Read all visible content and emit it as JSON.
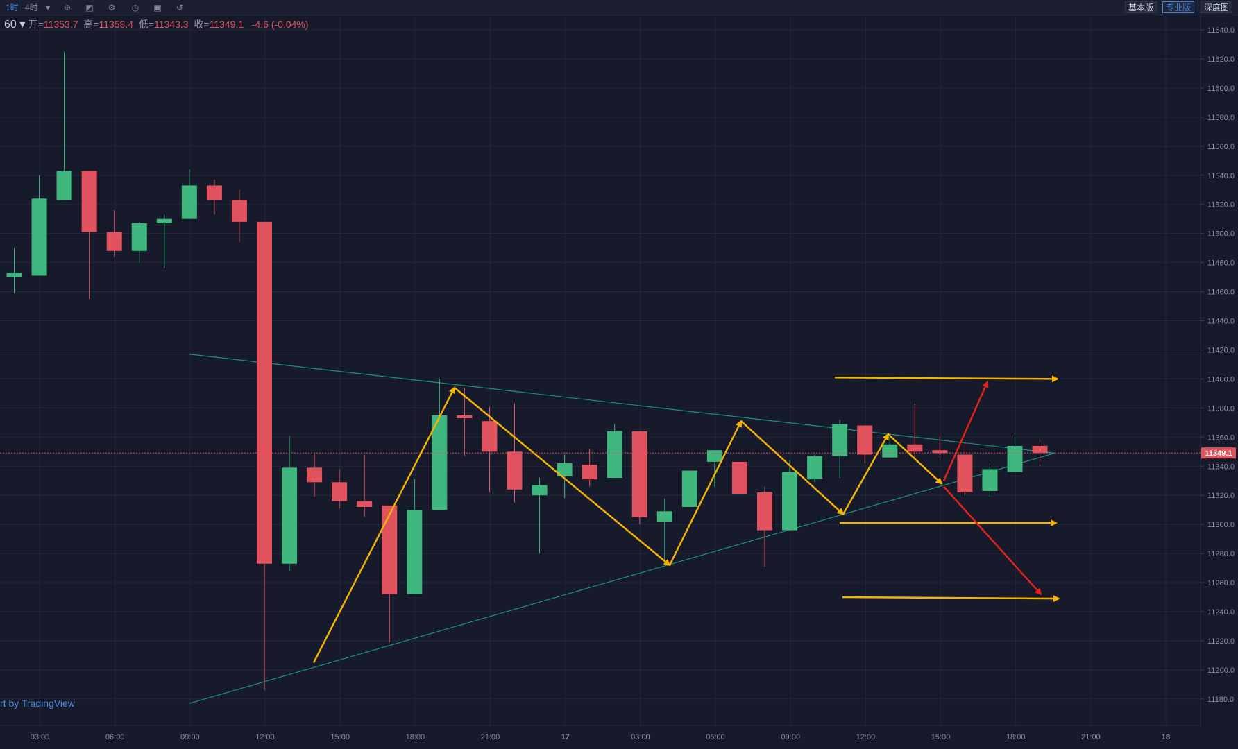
{
  "toolbar": {
    "interval_1h": "1时",
    "interval_4h": "4时",
    "btn_basic": "基本版",
    "btn_pro": "专业版",
    "btn_depth": "深度图"
  },
  "legend": {
    "resolution": "60",
    "open_label": "开=",
    "open": "11353.7",
    "high_label": "高=",
    "high": "11358.4",
    "low_label": "低=",
    "low": "11343.3",
    "close_label": "收=",
    "close": "11349.1",
    "change": "-4.6 (-0.04%)"
  },
  "watermark": "rt by TradingView",
  "colors": {
    "up": "#3fb77e",
    "down": "#e0525e",
    "grid": "#23283b",
    "trend": "#1f8f7e",
    "arrow": "#f5b400",
    "arrow_red": "#e2231a",
    "price_label": "#e0525e"
  },
  "chart_data": {
    "type": "candlestick",
    "current_price": "11349.1",
    "y_ticks": [
      "11640.0",
      "11620.0",
      "11600.0",
      "11580.0",
      "11560.0",
      "11540.0",
      "11520.0",
      "11500.0",
      "11480.0",
      "11460.0",
      "11440.0",
      "11420.0",
      "11400.0",
      "11380.0",
      "11360.0",
      "11340.0",
      "11320.0",
      "11300.0",
      "11280.0",
      "11260.0",
      "11240.0",
      "11220.0",
      "11200.0",
      "11180.0"
    ],
    "x_ticks": [
      "03:00",
      "06:00",
      "09:00",
      "12:00",
      "15:00",
      "18:00",
      "21:00",
      "17",
      "03:00",
      "06:00",
      "09:00",
      "12:00",
      "15:00",
      "18:00",
      "21:00",
      "18"
    ],
    "candles": [
      {
        "o": 11470,
        "h": 11490,
        "l": 11459,
        "c": 11473
      },
      {
        "o": 11471,
        "h": 11540,
        "l": 11471,
        "c": 11524
      },
      {
        "o": 11523,
        "h": 11625,
        "l": 11523,
        "c": 11543
      },
      {
        "o": 11543,
        "h": 11543,
        "l": 11455,
        "c": 11501
      },
      {
        "o": 11501,
        "h": 11516,
        "l": 11484,
        "c": 11488
      },
      {
        "o": 11488,
        "h": 11508,
        "l": 11480,
        "c": 11507
      },
      {
        "o": 11507,
        "h": 11513,
        "l": 11476,
        "c": 11510
      },
      {
        "o": 11510,
        "h": 11544,
        "l": 11510,
        "c": 11533
      },
      {
        "o": 11533,
        "h": 11537,
        "l": 11513,
        "c": 11523
      },
      {
        "o": 11523,
        "h": 11530,
        "l": 11494,
        "c": 11508
      },
      {
        "o": 11508,
        "h": 11508,
        "l": 11186,
        "c": 11273
      },
      {
        "o": 11273,
        "h": 11361,
        "l": 11268,
        "c": 11339
      },
      {
        "o": 11339,
        "h": 11349,
        "l": 11319,
        "c": 11329
      },
      {
        "o": 11329,
        "h": 11338,
        "l": 11311,
        "c": 11316
      },
      {
        "o": 11316,
        "h": 11348,
        "l": 11305,
        "c": 11312
      },
      {
        "o": 11313,
        "h": 11313,
        "l": 11219,
        "c": 11252
      },
      {
        "o": 11252,
        "h": 11331,
        "l": 11252,
        "c": 11310
      },
      {
        "o": 11310,
        "h": 11400,
        "l": 11310,
        "c": 11375
      },
      {
        "o": 11375,
        "h": 11394,
        "l": 11347,
        "c": 11373
      },
      {
        "o": 11371,
        "h": 11381,
        "l": 11322,
        "c": 11350
      },
      {
        "o": 11350,
        "h": 11383,
        "l": 11315,
        "c": 11324
      },
      {
        "o": 11320,
        "h": 11332,
        "l": 11280,
        "c": 11327
      },
      {
        "o": 11333,
        "h": 11348,
        "l": 11318,
        "c": 11342
      },
      {
        "o": 11341,
        "h": 11352,
        "l": 11326,
        "c": 11331
      },
      {
        "o": 11332,
        "h": 11369,
        "l": 11332,
        "c": 11364
      },
      {
        "o": 11364,
        "h": 11364,
        "l": 11300,
        "c": 11305
      },
      {
        "o": 11302,
        "h": 11318,
        "l": 11273,
        "c": 11309
      },
      {
        "o": 11312,
        "h": 11337,
        "l": 11312,
        "c": 11337
      },
      {
        "o": 11343,
        "h": 11349,
        "l": 11326,
        "c": 11351
      },
      {
        "o": 11343,
        "h": 11343,
        "l": 11322,
        "c": 11321
      },
      {
        "o": 11322,
        "h": 11326,
        "l": 11271,
        "c": 11296
      },
      {
        "o": 11296,
        "h": 11344,
        "l": 11296,
        "c": 11336
      },
      {
        "o": 11331,
        "h": 11348,
        "l": 11329,
        "c": 11347
      },
      {
        "o": 11347,
        "h": 11372,
        "l": 11332,
        "c": 11369
      },
      {
        "o": 11368,
        "h": 11368,
        "l": 11342,
        "c": 11348
      },
      {
        "o": 11346,
        "h": 11360,
        "l": 11346,
        "c": 11355
      },
      {
        "o": 11355,
        "h": 11383,
        "l": 11346,
        "c": 11350
      },
      {
        "o": 11351,
        "h": 11360,
        "l": 11346,
        "c": 11349
      },
      {
        "o": 11348,
        "h": 11356,
        "l": 11320,
        "c": 11322
      },
      {
        "o": 11323,
        "h": 11342,
        "l": 11319,
        "c": 11338
      },
      {
        "o": 11336,
        "h": 11360,
        "l": 11336,
        "c": 11354
      },
      {
        "o": 11354,
        "h": 11358,
        "l": 11343,
        "c": 11349
      }
    ],
    "trendlines": [
      {
        "from": [
          273,
          11417
        ],
        "to": [
          1520,
          11349
        ]
      },
      {
        "from": [
          273,
          11177
        ],
        "to": [
          1520,
          11349
        ]
      }
    ],
    "arrows_yellow": [
      {
        "from": [
          452,
          11205
        ],
        "to": [
          655,
          11394
        ]
      },
      {
        "from": [
          655,
          11394
        ],
        "to": [
          965,
          11272
        ]
      },
      {
        "from": [
          965,
          11272
        ],
        "to": [
          1068,
          11371
        ]
      },
      {
        "from": [
          1068,
          11371
        ],
        "to": [
          1215,
          11307
        ]
      },
      {
        "from": [
          1215,
          11307
        ],
        "to": [
          1280,
          11362
        ]
      },
      {
        "from": [
          1280,
          11362
        ],
        "to": [
          1357,
          11328
        ]
      },
      {
        "from": [
          1203,
          11401
        ],
        "to": [
          1524,
          11400
        ]
      },
      {
        "from": [
          1210,
          11301
        ],
        "to": [
          1522,
          11301
        ]
      },
      {
        "from": [
          1214,
          11250
        ],
        "to": [
          1526,
          11249
        ]
      }
    ],
    "arrows_red": [
      {
        "from": [
          1360,
          11330
        ],
        "to": [
          1423,
          11398
        ]
      },
      {
        "from": [
          1360,
          11326
        ],
        "to": [
          1500,
          11252
        ]
      }
    ]
  }
}
